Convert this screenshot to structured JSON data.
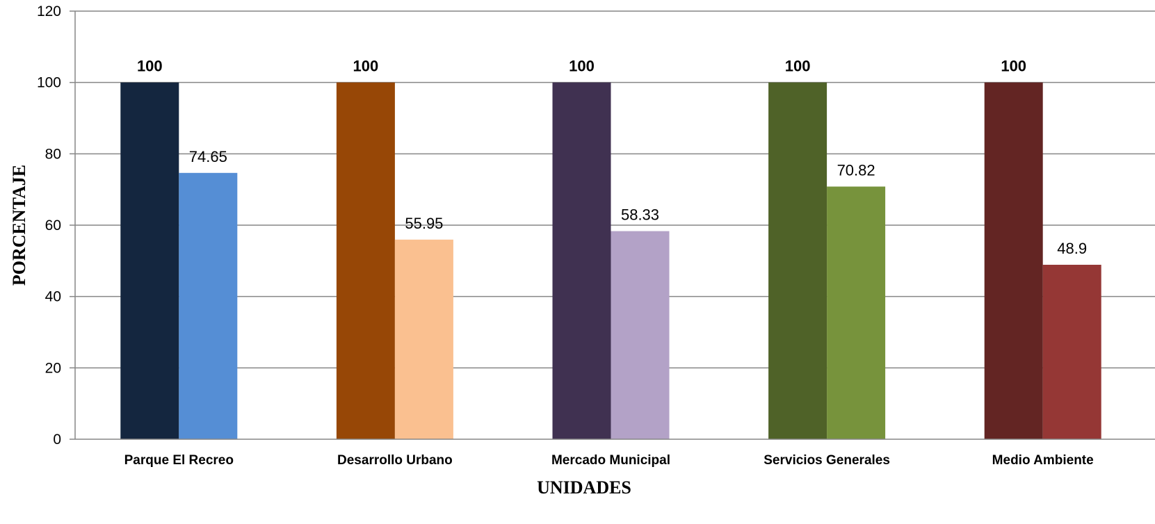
{
  "chart_data": {
    "type": "bar",
    "title": "",
    "xlabel": "UNIDADES",
    "ylabel": "PORCENTAJE",
    "ylim": [
      0,
      120
    ],
    "yticks": [
      0,
      20,
      40,
      60,
      80,
      100,
      120
    ],
    "grid": true,
    "legend": "none",
    "categories": [
      "Parque El Recreo",
      "Desarrollo Urbano",
      "Mercado Municipal",
      "Servicios Generales",
      "Medio Ambiente"
    ],
    "series": [
      {
        "values": [
          100,
          100,
          100,
          100,
          100
        ],
        "colors": [
          "#14263f",
          "#974706",
          "#403151",
          "#4f6228",
          "#632523"
        ],
        "labels_bold": true
      },
      {
        "values": [
          74.65,
          55.95,
          58.33,
          70.82,
          48.9
        ],
        "colors": [
          "#558ed5",
          "#fac090",
          "#b3a2c7",
          "#77933c",
          "#953735"
        ],
        "labels_bold": false
      }
    ]
  }
}
